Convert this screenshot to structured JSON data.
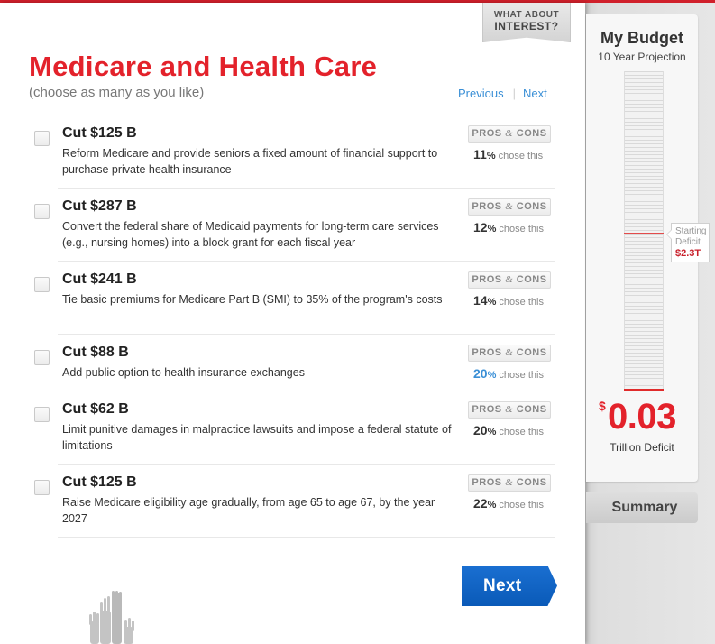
{
  "header": {
    "interest_tab_line1": "WHAT ABOUT",
    "interest_tab_line2": "INTEREST?",
    "title": "Medicare and Health Care",
    "subtitle": "(choose as many as you like)",
    "prev_label": "Previous",
    "sep": "|",
    "next_label": "Next"
  },
  "options": [
    {
      "amount": "Cut $125 B",
      "desc": "Reform Medicare and provide seniors a fixed amount of financial support to purchase private health insurance",
      "pros_cons_a": "PROS ",
      "pros_cons_amp": "&",
      "pros_cons_b": " CONS",
      "percent": "11",
      "pct_sign": "%",
      "chose": " chose this",
      "highlight": false,
      "checked": false
    },
    {
      "amount": "Cut $287 B",
      "desc": "Convert the federal share of Medicaid payments for long-term care services (e.g., nursing homes) into a block grant for each fiscal year",
      "pros_cons_a": "PROS ",
      "pros_cons_amp": "&",
      "pros_cons_b": " CONS",
      "percent": "12",
      "pct_sign": "%",
      "chose": " chose this",
      "highlight": false,
      "checked": false
    },
    {
      "amount": "Cut $241 B",
      "desc": "Tie basic premiums for Medicare Part B (SMI) to 35% of the program's costs",
      "pros_cons_a": "PROS ",
      "pros_cons_amp": "&",
      "pros_cons_b": " CONS",
      "percent": "14",
      "pct_sign": "%",
      "chose": " chose this",
      "highlight": false,
      "checked": false
    },
    {
      "amount": "Cut $88 B",
      "desc": "Add public option to health insurance exchanges",
      "pros_cons_a": "PROS ",
      "pros_cons_amp": "&",
      "pros_cons_b": " CONS",
      "percent": "20",
      "pct_sign": "%",
      "chose": " chose this",
      "highlight": true,
      "checked": false
    },
    {
      "amount": "Cut $62 B",
      "desc": "Limit punitive damages in malpractice lawsuits and impose a federal statute of limitations",
      "pros_cons_a": "PROS ",
      "pros_cons_amp": "&",
      "pros_cons_b": " CONS",
      "percent": "20",
      "pct_sign": "%",
      "chose": " chose this",
      "highlight": false,
      "checked": false
    },
    {
      "amount": "Cut $125 B",
      "desc": "Raise Medicare eligibility age gradually, from age 65 to age 67, by the year 2027",
      "pros_cons_a": "PROS ",
      "pros_cons_amp": "&",
      "pros_cons_b": " CONS",
      "percent": "22",
      "pct_sign": "%",
      "chose": " chose this",
      "highlight": false,
      "checked": false
    }
  ],
  "next_button": "Next",
  "budget": {
    "title": "My Budget",
    "subtitle": "10 Year Projection",
    "starting_label_1": "Starting",
    "starting_label_2": "Deficit",
    "starting_value": "$2.3T",
    "currency": "$",
    "amount": "0.03",
    "amount_label": "Trillion Deficit"
  },
  "summary_button": "Summary",
  "colors": {
    "accent_red": "#e3222b",
    "link_blue": "#3a8fd6",
    "button_blue": "#0a5ab8"
  },
  "icons": [
    "raised-hands-icon",
    "checkbox-icon"
  ]
}
